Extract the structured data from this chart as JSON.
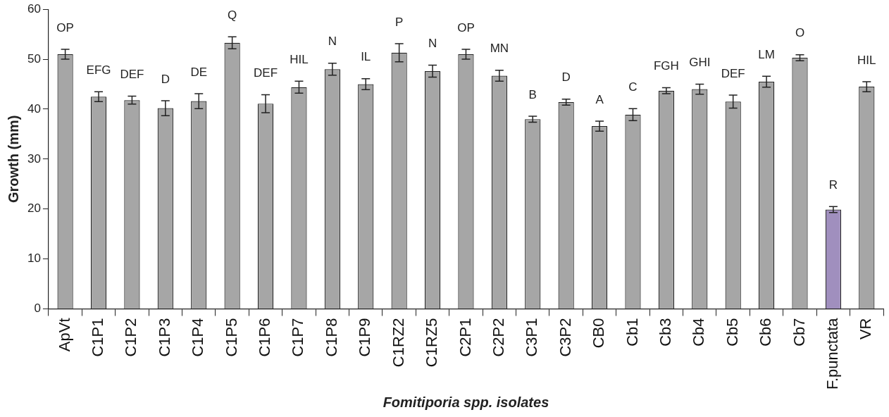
{
  "chart_data": {
    "type": "bar",
    "xlabel": "Fomitiporia spp. isolates",
    "ylabel": "Growth (mm)",
    "categories": [
      "ApVt",
      "C1P1",
      "C1P2",
      "C1P3",
      "C1P4",
      "C1P5",
      "C1P6",
      "C1P7",
      "C1P8",
      "C1P9",
      "C1RZ2",
      "C1RZ5",
      "C2P1",
      "C2P2",
      "C3P1",
      "C3P2",
      "CB0",
      "Cb1",
      "Cb3",
      "Cb4",
      "Cb5",
      "Cb6",
      "Cb7",
      "F.punctata",
      "VR"
    ],
    "values": [
      51,
      42.5,
      41.8,
      40.2,
      41.6,
      53.3,
      41.1,
      44.4,
      48,
      45,
      51.3,
      47.6,
      51,
      46.7,
      38,
      41.4,
      36.6,
      38.9,
      43.7,
      44,
      41.5,
      45.5,
      50.3,
      19.9,
      44.5
    ],
    "errors": [
      1,
      1,
      0.8,
      1.5,
      1.5,
      1.2,
      1.8,
      1.2,
      1.2,
      1.1,
      1.8,
      1.2,
      1,
      1.1,
      0.6,
      0.6,
      1,
      1.2,
      0.6,
      1,
      1.3,
      1.1,
      0.6,
      0.6,
      1
    ],
    "colors": [
      "#a6a6a6",
      "#a6a6a6",
      "#a6a6a6",
      "#a6a6a6",
      "#a6a6a6",
      "#a6a6a6",
      "#a6a6a6",
      "#a6a6a6",
      "#a6a6a6",
      "#a6a6a6",
      "#a6a6a6",
      "#a6a6a6",
      "#a6a6a6",
      "#a6a6a6",
      "#a6a6a6",
      "#a6a6a6",
      "#a6a6a6",
      "#a6a6a6",
      "#a6a6a6",
      "#a6a6a6",
      "#a6a6a6",
      "#a6a6a6",
      "#a6a6a6",
      "#a08fbe",
      "#a6a6a6"
    ],
    "ylim": [
      0,
      60
    ],
    "yticks": [
      0,
      10,
      20,
      30,
      40,
      50,
      60
    ],
    "grid": false,
    "legend": false,
    "annotations": [
      "OP",
      "EFG",
      "DEF",
      "D",
      "DE",
      "Q",
      "DEF",
      "HIL",
      "N",
      "IL",
      "P",
      "N",
      "OP",
      "MN",
      "B",
      "D",
      "A",
      "C",
      "FGH",
      "GHI",
      "DEF",
      "LM",
      "O",
      "R",
      "HIL"
    ]
  }
}
